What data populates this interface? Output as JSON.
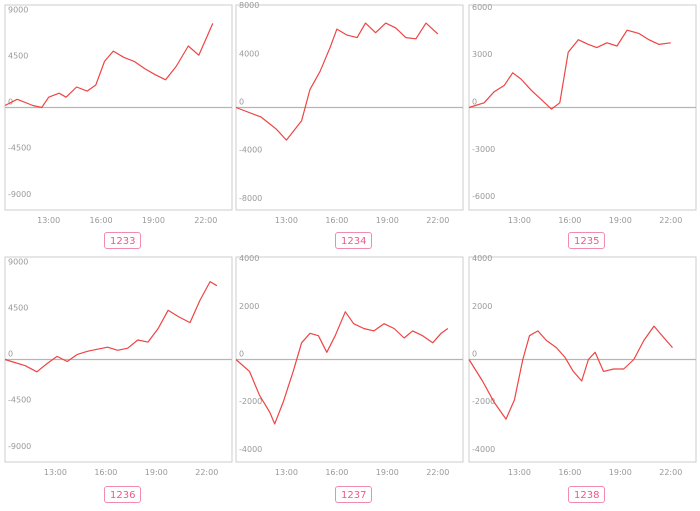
{
  "chart_data": [
    {
      "type": "line",
      "label": "1233",
      "x_ticks": [
        "13:00",
        "16:00",
        "19:00",
        "22:00"
      ],
      "y_ticks": [
        9000,
        4500,
        0,
        -4500,
        -9000
      ],
      "y_tick_labels": [
        "9000",
        "4500",
        "0",
        "-4500",
        "-9000"
      ],
      "ylim": [
        -10000,
        10000
      ],
      "xlim": [
        10.5,
        23.5
      ],
      "x": [
        10.5,
        11.2,
        12.1,
        12.6,
        13.0,
        13.6,
        14.0,
        14.6,
        15.2,
        15.7,
        16.2,
        16.7,
        17.3,
        17.9,
        18.5,
        19.1,
        19.7,
        20.3,
        21.0,
        21.6,
        22.4
      ],
      "values": [
        200,
        800,
        200,
        0,
        1000,
        1400,
        1000,
        2000,
        1600,
        2200,
        4500,
        5500,
        4900,
        4500,
        3800,
        3200,
        2700,
        4000,
        6000,
        5100,
        8200
      ],
      "color": "#ee4444"
    },
    {
      "type": "line",
      "label": "1234",
      "x_ticks": [
        "13:00",
        "16:00",
        "19:00",
        "22:00"
      ],
      "y_ticks": [
        8000,
        4000,
        0,
        -4000,
        -8000
      ],
      "y_tick_labels": [
        "8000",
        "4000",
        "0",
        "-4000",
        "-8000"
      ],
      "ylim": [
        -8500,
        8500
      ],
      "xlim": [
        10,
        23.5
      ],
      "x": [
        10.0,
        11.5,
        12.4,
        13.0,
        13.9,
        14.4,
        15.0,
        15.6,
        16.0,
        16.6,
        17.2,
        17.7,
        18.3,
        18.9,
        19.5,
        20.1,
        20.7,
        21.3,
        22.0
      ],
      "values": [
        0,
        -800,
        -1800,
        -2700,
        -1100,
        1500,
        3000,
        5000,
        6500,
        6000,
        5800,
        7000,
        6200,
        7000,
        6600,
        5800,
        5700,
        7000,
        6100
      ],
      "color": "#ee4444"
    },
    {
      "type": "line",
      "label": "1235",
      "x_ticks": [
        "13:00",
        "16:00",
        "19:00",
        "22:00"
      ],
      "y_ticks": [
        6000,
        3000,
        0,
        -3000,
        -6000
      ],
      "y_tick_labels": [
        "6000",
        "3000",
        "0",
        "-3000",
        "-6000"
      ],
      "ylim": [
        -6500,
        6500
      ],
      "xlim": [
        10,
        23.5
      ],
      "x": [
        10.0,
        10.9,
        11.5,
        12.1,
        12.6,
        13.1,
        13.7,
        14.3,
        14.9,
        15.4,
        15.9,
        16.5,
        17.1,
        17.6,
        18.2,
        18.8,
        19.4,
        20.1,
        20.7,
        21.3,
        22.0
      ],
      "values": [
        0,
        300,
        1000,
        1400,
        2200,
        1800,
        1100,
        500,
        -100,
        300,
        3500,
        4300,
        4000,
        3800,
        4100,
        3900,
        4900,
        4700,
        4300,
        4000,
        4100
      ],
      "color": "#ee4444"
    },
    {
      "type": "line",
      "label": "1236",
      "x_ticks": [
        "13:00",
        "16:00",
        "19:00",
        "22:00"
      ],
      "y_ticks": [
        9000,
        4500,
        0,
        -4500,
        -9000
      ],
      "y_tick_labels": [
        "9000",
        "4500",
        "0",
        "-4500",
        "-9000"
      ],
      "ylim": [
        -10000,
        10000
      ],
      "xlim": [
        10,
        23.5
      ],
      "x": [
        10.0,
        11.2,
        11.9,
        12.5,
        13.1,
        13.7,
        14.3,
        14.9,
        15.5,
        16.1,
        16.7,
        17.3,
        17.9,
        18.5,
        19.1,
        19.7,
        20.3,
        21.0,
        21.6,
        22.2,
        22.6
      ],
      "values": [
        0,
        -600,
        -1200,
        -400,
        300,
        -200,
        500,
        800,
        1000,
        1200,
        900,
        1100,
        1900,
        1700,
        3000,
        4800,
        4200,
        3600,
        5800,
        7600,
        7200
      ],
      "color": "#ee4444"
    },
    {
      "type": "line",
      "label": "1237",
      "x_ticks": [
        "13:00",
        "16:00",
        "19:00",
        "22:00"
      ],
      "y_ticks": [
        4000,
        2000,
        0,
        -2000,
        -4000
      ],
      "y_tick_labels": [
        "4000",
        "2000",
        "0",
        "-2000",
        "-4000"
      ],
      "ylim": [
        -4300,
        4300
      ],
      "xlim": [
        10,
        23.5
      ],
      "x": [
        10.0,
        10.8,
        11.4,
        12.0,
        12.3,
        12.8,
        13.4,
        13.9,
        14.4,
        14.9,
        15.4,
        15.9,
        16.5,
        17.0,
        17.6,
        18.2,
        18.8,
        19.4,
        20.0,
        20.5,
        21.1,
        21.7,
        22.2,
        22.6
      ],
      "values": [
        0,
        -500,
        -1500,
        -2200,
        -2700,
        -1800,
        -500,
        700,
        1100,
        1000,
        300,
        1000,
        2000,
        1500,
        1300,
        1200,
        1500,
        1300,
        900,
        1200,
        1000,
        700,
        1100,
        1300
      ],
      "color": "#ee4444"
    },
    {
      "type": "line",
      "label": "1238",
      "x_ticks": [
        "13:00",
        "16:00",
        "19:00",
        "22:00"
      ],
      "y_ticks": [
        4000,
        2000,
        0,
        -2000,
        -4000
      ],
      "y_tick_labels": [
        "4000",
        "2000",
        "0",
        "-2000",
        "-4000"
      ],
      "ylim": [
        -4300,
        4300
      ],
      "xlim": [
        10,
        23.5
      ],
      "x": [
        10.0,
        10.8,
        11.5,
        12.2,
        12.7,
        13.2,
        13.6,
        14.1,
        14.6,
        15.2,
        15.7,
        16.2,
        16.7,
        17.1,
        17.5,
        18.0,
        18.6,
        19.2,
        19.8,
        20.4,
        21.0,
        21.6,
        22.1
      ],
      "values": [
        0,
        -900,
        -1800,
        -2500,
        -1700,
        0,
        1000,
        1200,
        800,
        500,
        100,
        -500,
        -900,
        0,
        300,
        -500,
        -400,
        -400,
        0,
        800,
        1400,
        900,
        500
      ],
      "color": "#ee4444"
    }
  ],
  "buttons": [
    {
      "label": "1233"
    },
    {
      "label": "1234"
    },
    {
      "label": "1235"
    },
    {
      "label": "1236"
    },
    {
      "label": "1237"
    },
    {
      "label": "1238"
    }
  ]
}
